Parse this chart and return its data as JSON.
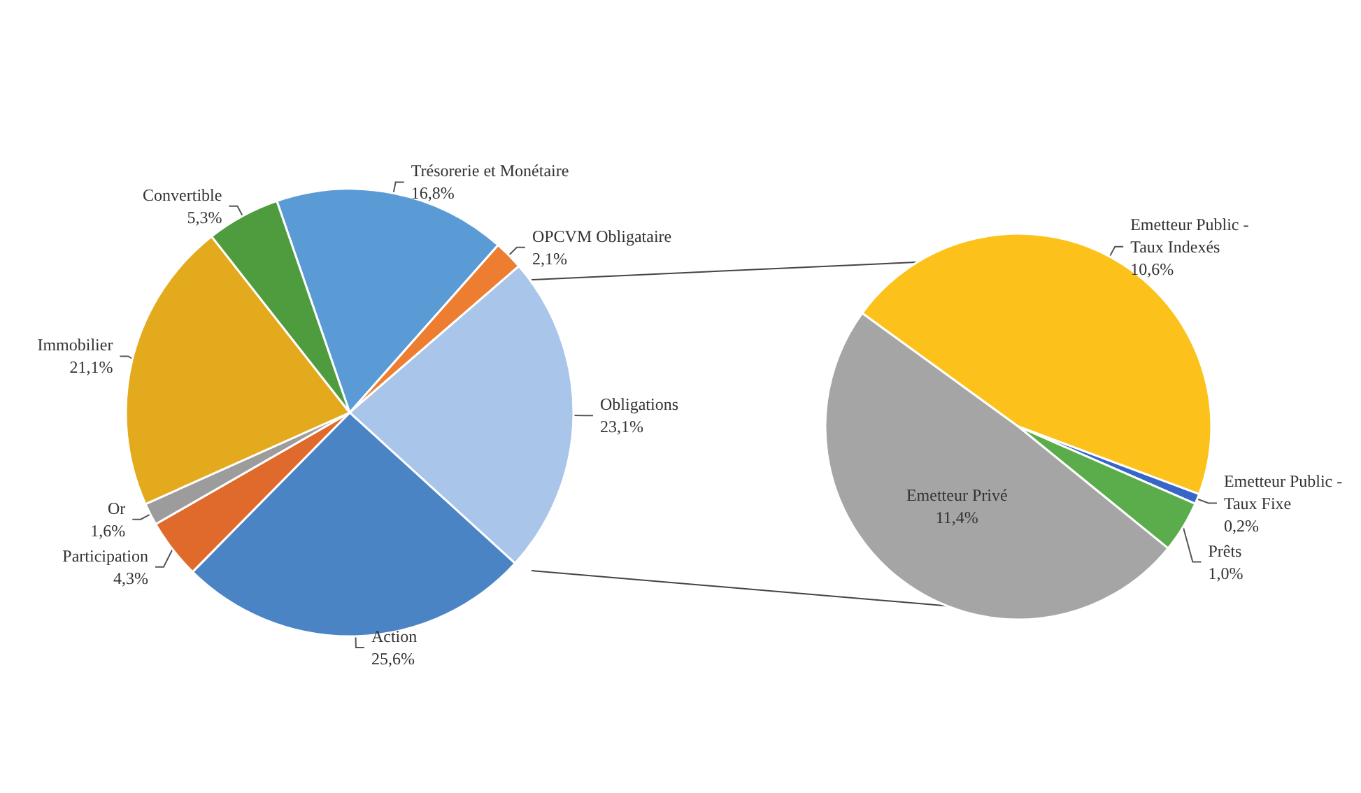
{
  "chart_data": [
    {
      "type": "pie",
      "categories": [
        "Trésorerie et Monétaire",
        "OPCVM Obligataire",
        "Obligations",
        "Action",
        "Participation",
        "Or",
        "Immobilier",
        "Convertible"
      ],
      "values": [
        16.8,
        2.1,
        23.1,
        25.6,
        4.3,
        1.6,
        21.1,
        5.3
      ],
      "colors": [
        "#5b9bd5",
        "#ed7d31",
        "#a9c5ea",
        "#4a84c4",
        "#e0692c",
        "#9c9c9c",
        "#e3aa1e",
        "#4e9c3e"
      ],
      "value_labels": [
        "16,8%",
        "2,1%",
        "23,1%",
        "25,6%",
        "4,3%",
        "1,6%",
        "21,1%",
        "5,3%"
      ]
    },
    {
      "type": "pie",
      "categories": [
        "Emetteur Public - Taux Indexés",
        "Emetteur Public - Taux Fixe",
        "Prêts",
        "Emetteur Privé"
      ],
      "values": [
        10.6,
        0.2,
        1.0,
        11.4
      ],
      "colors": [
        "#fcc21b",
        "#3566c8",
        "#5aad4a",
        "#a5a5a5"
      ],
      "value_labels": [
        "10,6%",
        "0,2%",
        "1,0%",
        "11,4%"
      ]
    }
  ]
}
